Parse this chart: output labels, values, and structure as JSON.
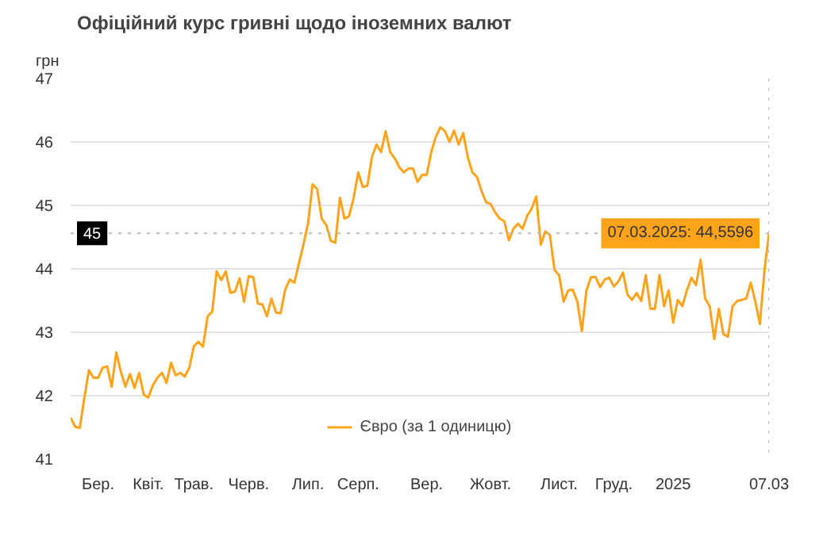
{
  "chart_data": {
    "type": "line",
    "title": "Офіційний курс гривні щодо іноземних валют",
    "ylabel": "грн",
    "categories": [
      null,
      null,
      null,
      null,
      null,
      null,
      "Бер.",
      null,
      null,
      null,
      null,
      null,
      null,
      null,
      null,
      null,
      null,
      "Квіт.",
      null,
      null,
      null,
      null,
      null,
      null,
      null,
      null,
      null,
      "Трав.",
      null,
      null,
      null,
      null,
      null,
      null,
      null,
      null,
      null,
      null,
      null,
      "Черв.",
      null,
      null,
      null,
      null,
      null,
      null,
      null,
      null,
      null,
      null,
      null,
      null,
      "Лип.",
      null,
      null,
      null,
      null,
      null,
      null,
      null,
      null,
      null,
      null,
      "Серп.",
      null,
      null,
      null,
      null,
      null,
      null,
      null,
      null,
      null,
      null,
      null,
      null,
      null,
      null,
      "Вер.",
      null,
      null,
      null,
      null,
      null,
      null,
      null,
      null,
      null,
      null,
      null,
      null,
      null,
      "Жовт.",
      null,
      null,
      null,
      null,
      null,
      null,
      null,
      null,
      null,
      null,
      null,
      null,
      null,
      null,
      "Лист.",
      null,
      null,
      null,
      null,
      null,
      null,
      null,
      null,
      null,
      null,
      null,
      "Груд.",
      null,
      null,
      null,
      null,
      null,
      null,
      null,
      null,
      null,
      null,
      null,
      null,
      "2025",
      null,
      null,
      null,
      null,
      null,
      null,
      null,
      null,
      null,
      null,
      null,
      null,
      null,
      null,
      null,
      null,
      null,
      null,
      null,
      null,
      "07.03"
    ],
    "series": [
      {
        "name": "Євро (за 1 одиницю)",
        "color": "#ffa31a",
        "values": [
          41.65,
          41.51,
          41.49,
          41.96,
          42.4,
          42.28,
          42.28,
          42.44,
          42.46,
          42.14,
          42.68,
          42.38,
          42.14,
          42.34,
          42.12,
          42.36,
          42.02,
          41.97,
          42.16,
          42.28,
          42.36,
          42.2,
          42.52,
          42.32,
          42.36,
          42.3,
          42.44,
          42.78,
          42.85,
          42.77,
          43.25,
          43.32,
          43.96,
          43.82,
          43.96,
          43.62,
          43.64,
          43.85,
          43.48,
          43.88,
          43.87,
          43.45,
          43.44,
          43.25,
          43.53,
          43.31,
          43.3,
          43.67,
          43.83,
          43.78,
          44.08,
          44.38,
          44.71,
          45.33,
          45.26,
          44.79,
          44.69,
          44.44,
          44.41,
          45.12,
          44.79,
          44.83,
          45.12,
          45.52,
          45.29,
          45.31,
          45.76,
          45.96,
          45.84,
          46.17,
          45.84,
          45.74,
          45.6,
          45.52,
          45.58,
          45.58,
          45.37,
          45.48,
          45.48,
          45.84,
          46.08,
          46.23,
          46.17,
          46.0,
          46.18,
          45.96,
          46.14,
          45.76,
          45.52,
          45.45,
          45.23,
          45.05,
          45.02,
          44.89,
          44.79,
          44.75,
          44.45,
          44.63,
          44.71,
          44.63,
          44.83,
          44.95,
          45.14,
          44.38,
          44.59,
          44.53,
          43.98,
          43.9,
          43.48,
          43.66,
          43.67,
          43.48,
          43.02,
          43.66,
          43.87,
          43.87,
          43.71,
          43.83,
          43.86,
          43.72,
          43.8,
          43.94,
          43.59,
          43.51,
          43.62,
          43.49,
          43.9,
          43.37,
          43.37,
          43.9,
          43.41,
          43.66,
          43.15,
          43.51,
          43.41,
          43.66,
          43.86,
          43.74,
          44.14,
          43.53,
          43.41,
          42.89,
          43.37,
          42.97,
          42.93,
          43.41,
          43.49,
          43.51,
          43.53,
          43.78,
          43.48,
          43.13,
          43.98,
          44.5596
        ]
      }
    ],
    "ylim": [
      41,
      47
    ],
    "yticks": [
      41,
      42,
      43,
      44,
      45,
      46,
      47
    ],
    "ref_lines": [
      {
        "axis": "y",
        "value": 44.5596,
        "label": "45",
        "line_style": "dotted",
        "color": "#bbbbbb"
      },
      {
        "axis": "x",
        "value": "07.03",
        "line_style": "dotted",
        "color": "#bbbbbb"
      }
    ],
    "annotations": [
      {
        "text": "07.03.2025: 44,5596",
        "x": "07.03",
        "y": 44.5596
      }
    ],
    "grid": "y",
    "legend": "bottom",
    "line_style": "solid"
  }
}
